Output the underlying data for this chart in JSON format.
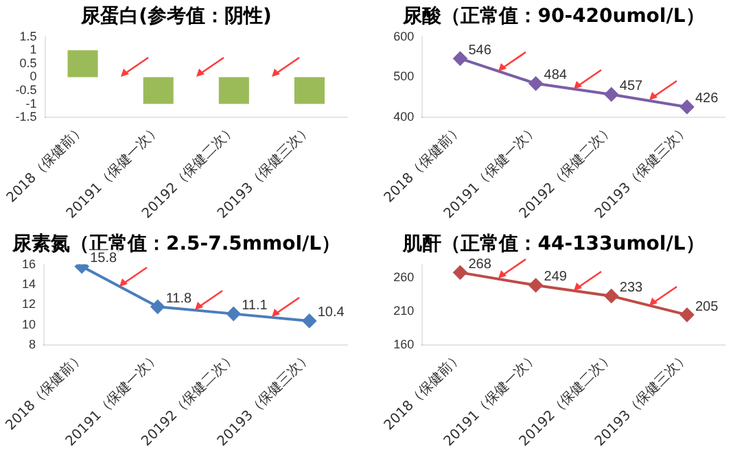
{
  "chart_data": [
    {
      "type": "bar",
      "title": "尿蛋白(参考值：阴性)",
      "categories": [
        "2018（保健前）",
        "20191（保健一次）",
        "20192（保健二次）",
        "20193（保健三次）"
      ],
      "values": [
        1,
        -1,
        -1,
        -1
      ],
      "color": "#9bbb59",
      "ylim": [
        -1.5,
        1.5
      ],
      "yticks": [
        -1.5,
        -1,
        -0.5,
        0,
        0.5,
        1,
        1.5
      ],
      "grid": false
    },
    {
      "type": "line",
      "title": "尿酸（正常值：90-420umol/L）",
      "categories": [
        "2018（保健前）",
        "20191（保健一次）",
        "20192（保健二次）",
        "20193（保健三次）"
      ],
      "values": [
        546,
        484,
        457,
        426
      ],
      "color": "#7b5ea7",
      "ylim": [
        400,
        600
      ],
      "yticks": [
        400,
        500,
        600
      ],
      "grid": false,
      "marker": "diamond",
      "data_labels": true
    },
    {
      "type": "line",
      "title": "尿素氮（正常值：2.5-7.5mmol/L）",
      "categories": [
        "2018（保健前）",
        "20191（保健一次）",
        "20192（保健二次）",
        "20193（保健三次）"
      ],
      "values": [
        15.8,
        11.8,
        11.1,
        10.4
      ],
      "color": "#4a7ebb",
      "ylim": [
        8,
        16
      ],
      "yticks": [
        8,
        10,
        12,
        14,
        16
      ],
      "grid": false,
      "marker": "diamond",
      "data_labels": true
    },
    {
      "type": "line",
      "title": "肌酐（正常值：44-133umol/L）",
      "categories": [
        "2018（保健前）",
        "20191（保健一次）",
        "20192（保健二次）",
        "20193（保健三次）"
      ],
      "values": [
        268,
        249,
        233,
        205
      ],
      "color": "#be4b48",
      "ylim": [
        160,
        280
      ],
      "yticks": [
        160,
        210,
        260
      ],
      "grid": false,
      "marker": "diamond",
      "data_labels": true
    }
  ]
}
